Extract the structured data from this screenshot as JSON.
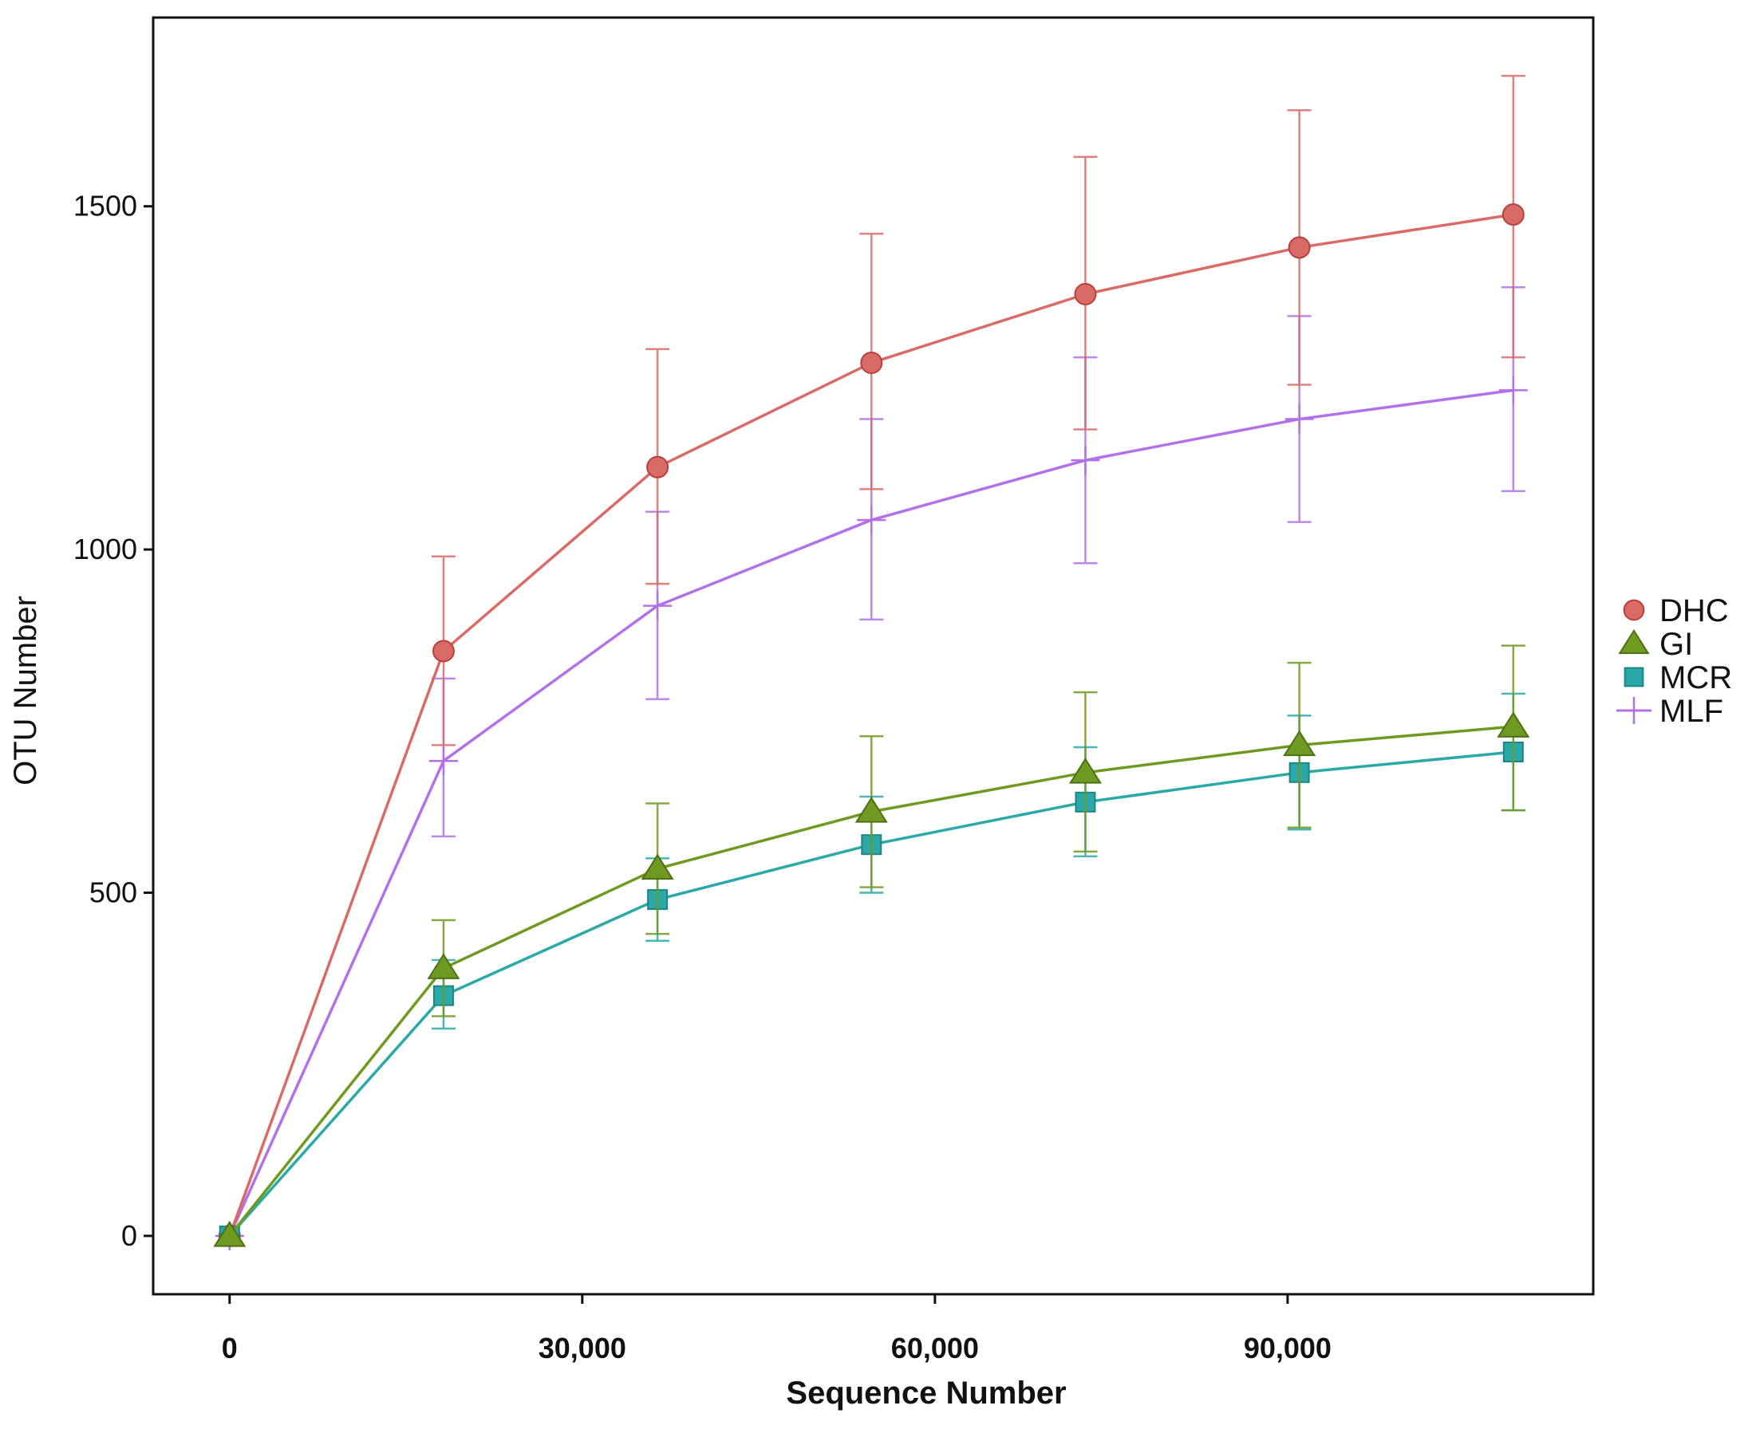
{
  "chart_data": {
    "type": "line",
    "xlabel": "Sequence Number",
    "ylabel": "OTU Number",
    "xlim": [
      -6500,
      116000
    ],
    "ylim": [
      -85,
      1775
    ],
    "x_ticks": [
      0,
      30000,
      60000,
      90000
    ],
    "x_tick_labels": [
      "0",
      "30,000",
      "60,000",
      "90,000"
    ],
    "y_ticks": [
      0,
      500,
      1000,
      1500
    ],
    "y_tick_labels": [
      "0",
      "500",
      "1000",
      "1500"
    ],
    "grid": false,
    "error_bars": true,
    "legend_position": "right",
    "x": [
      0,
      18200,
      36400,
      54600,
      72800,
      91000,
      109200
    ],
    "series": [
      {
        "name": "DHC",
        "color": "#d96b67",
        "marker": "circle",
        "values": [
          0,
          852,
          1120,
          1272,
          1372,
          1440,
          1488
        ],
        "err_low": [
          0,
          715,
          950,
          1088,
          1175,
          1240,
          1280
        ],
        "err_high": [
          0,
          990,
          1292,
          1460,
          1572,
          1640,
          1690
        ]
      },
      {
        "name": "GI",
        "color": "#6f9a22",
        "marker": "triangle",
        "values": [
          0,
          390,
          535,
          618,
          675,
          715,
          742
        ],
        "err_low": [
          0,
          320,
          440,
          508,
          560,
          595,
          620
        ],
        "err_high": [
          0,
          460,
          630,
          728,
          792,
          835,
          860
        ]
      },
      {
        "name": "MCR",
        "color": "#2aa9a8",
        "marker": "square",
        "values": [
          0,
          350,
          490,
          570,
          632,
          675,
          705
        ],
        "err_low": [
          0,
          302,
          430,
          500,
          553,
          592,
          620
        ],
        "err_high": [
          0,
          402,
          550,
          640,
          712,
          758,
          790
        ]
      },
      {
        "name": "MLF",
        "color": "#b271e6",
        "marker": "plus",
        "values": [
          0,
          692,
          918,
          1043,
          1130,
          1190,
          1232
        ],
        "err_low": [
          0,
          582,
          782,
          898,
          980,
          1040,
          1085
        ],
        "err_high": [
          0,
          812,
          1055,
          1190,
          1280,
          1340,
          1382
        ]
      }
    ]
  }
}
